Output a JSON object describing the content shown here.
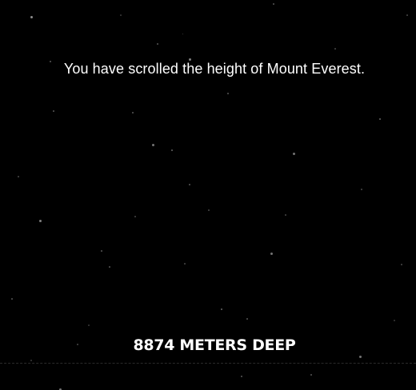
{
  "message": "You have scrolled the height of Mount Everest.",
  "depth_label": "8874 METERS DEEP",
  "colors": {
    "background": "#000000",
    "text": "#ffffff",
    "star": "#ffffff"
  }
}
